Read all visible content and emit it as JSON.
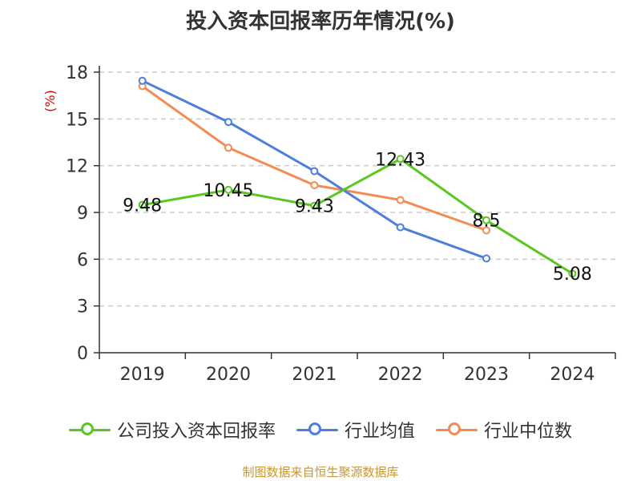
{
  "title": "投入资本回报率历年情况(%)",
  "source": "制图数据来自恒生聚源数据库",
  "colors": {
    "axis": "#333333",
    "grid": "#cccccc",
    "unit": "#dd0000",
    "text": "#333333"
  },
  "chart_data": {
    "type": "line",
    "title": "投入资本回报率历年情况(%)",
    "ylabel": "(%)",
    "xlabel": "",
    "ylim": [
      0,
      18
    ],
    "yticks": [
      0,
      3,
      6,
      9,
      12,
      15,
      18
    ],
    "categories": [
      "2019",
      "2020",
      "2021",
      "2022",
      "2023",
      "2024"
    ],
    "grid": true,
    "legend_position": "bottom",
    "series": [
      {
        "name": "公司投入资本回报率",
        "color": "#5ac721",
        "values": [
          9.48,
          10.45,
          9.43,
          12.43,
          8.5,
          5.08
        ],
        "labels": [
          "9.48",
          "10.45",
          "9.43",
          "12.43",
          "8.5",
          "5.08"
        ]
      },
      {
        "name": "行业均值",
        "color": "#4c7fdc",
        "values": [
          17.45,
          14.8,
          11.65,
          8.05,
          6.05,
          null
        ]
      },
      {
        "name": "行业中位数",
        "color": "#f38b53",
        "values": [
          17.1,
          13.15,
          10.75,
          9.8,
          7.85,
          null
        ]
      }
    ]
  }
}
